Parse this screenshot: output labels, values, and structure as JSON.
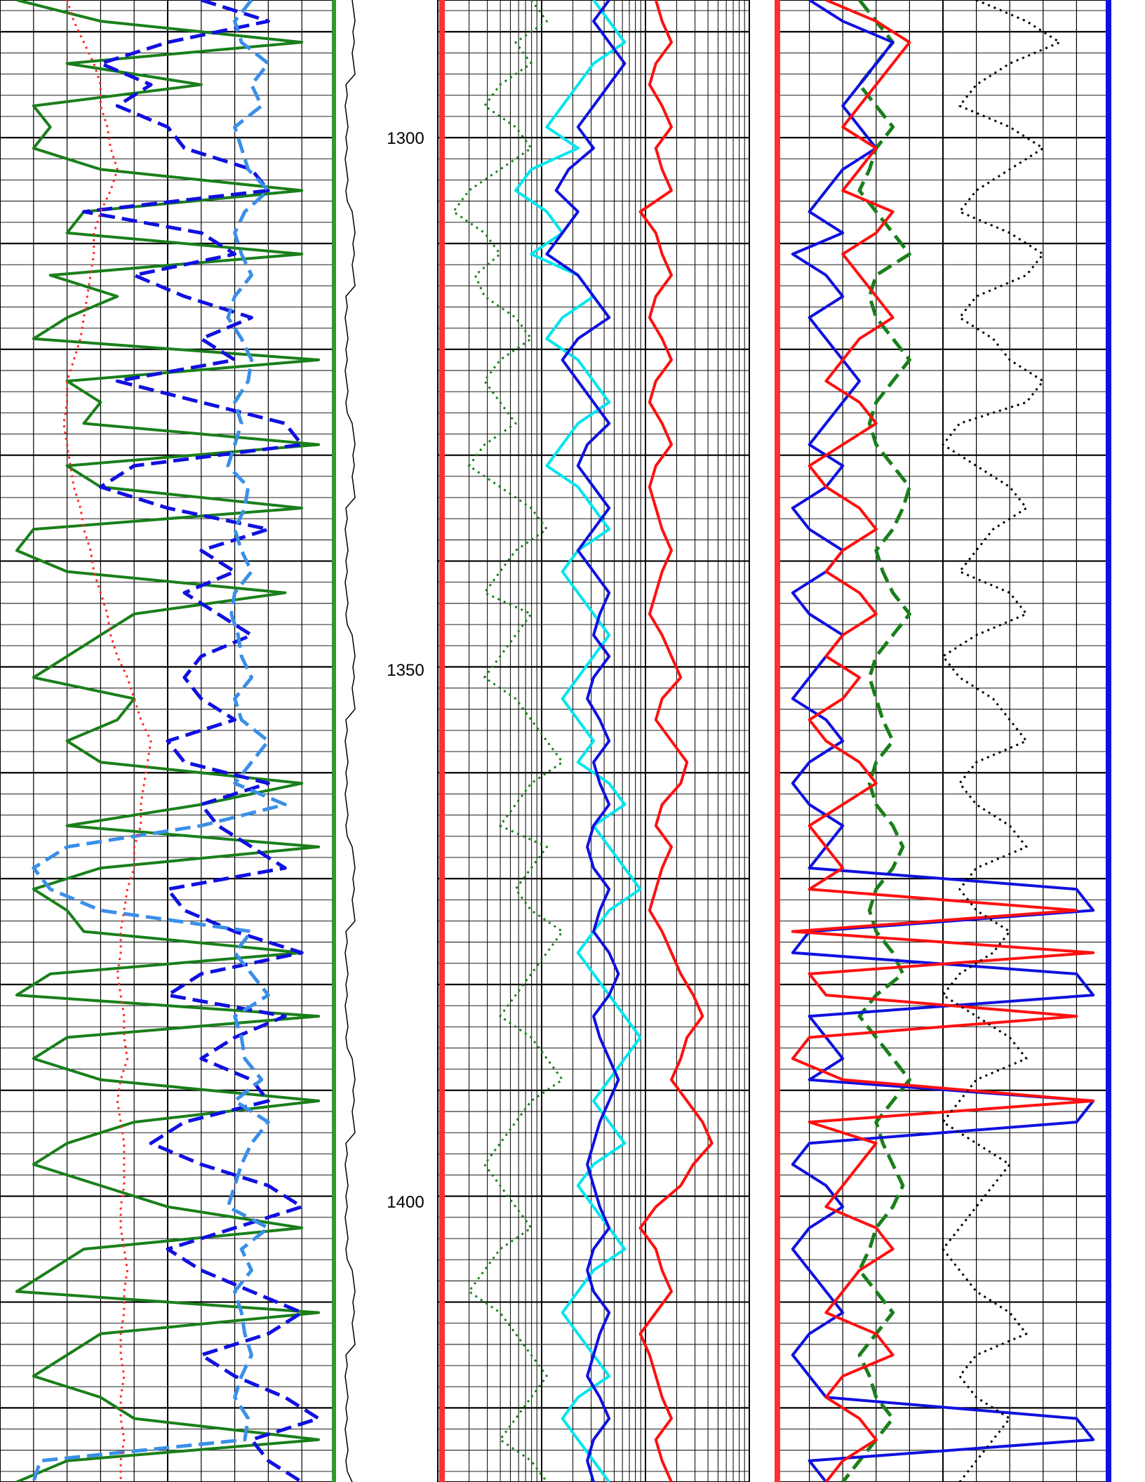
{
  "chart_data": {
    "type": "line",
    "subtype": "well-log",
    "depth_range": [
      1287,
      1427
    ],
    "depth_labels": [
      "1300",
      "1350",
      "1400"
    ],
    "depth_values": [
      1300,
      1350,
      1400
    ],
    "tracks": [
      {
        "id": "track-1",
        "scale": "linear",
        "grid": true,
        "series": [
          {
            "color": "#1a7f1a",
            "style": "solid",
            "x": [
              0.05,
              0.3,
              0.9,
              0.2,
              0.6,
              0.1,
              0.15,
              0.1,
              0.3,
              0.9,
              0.25,
              0.2,
              0.9,
              0.15,
              0.35,
              0.2,
              0.1,
              0.95,
              0.2,
              0.3,
              0.25,
              0.95,
              0.2,
              0.3,
              0.9,
              0.1,
              0.05,
              0.2,
              0.85,
              0.4,
              0.3,
              0.2,
              0.1,
              0.4,
              0.35,
              0.2,
              0.3,
              0.9,
              0.6,
              0.2,
              0.95,
              0.3,
              0.1,
              0.2,
              0.25,
              0.9,
              0.15,
              0.05,
              0.95,
              0.2,
              0.1,
              0.3,
              0.95,
              0.4,
              0.2,
              0.1,
              0.3,
              0.5,
              0.9,
              0.25,
              0.15,
              0.05,
              0.95,
              0.3,
              0.2,
              0.1,
              0.3,
              0.4,
              0.95,
              0.2,
              0.05
            ]
          },
          {
            "color": "#1010e0",
            "style": "dash",
            "x": [
              0.6,
              0.8,
              0.5,
              0.3,
              0.45,
              0.35,
              0.5,
              0.55,
              0.75,
              0.8,
              0.25,
              0.6,
              0.7,
              0.4,
              0.55,
              0.75,
              0.6,
              0.7,
              0.35,
              0.6,
              0.85,
              0.9,
              0.4,
              0.3,
              0.5,
              0.8,
              0.6,
              0.7,
              0.55,
              0.65,
              0.75,
              0.6,
              0.55,
              0.6,
              0.7,
              0.5,
              0.55,
              0.8,
              0.6,
              0.65,
              0.75,
              0.85,
              0.5,
              0.55,
              0.7,
              0.9,
              0.6,
              0.5,
              0.85,
              0.7,
              0.6,
              0.75,
              0.8,
              0.55,
              0.45,
              0.6,
              0.8,
              0.9,
              0.7,
              0.5,
              0.6,
              0.75,
              0.9,
              0.8,
              0.6,
              0.7,
              0.85,
              0.95,
              0.75,
              0.8,
              0.9
            ]
          },
          {
            "color": "#3a8fe8",
            "style": "dash",
            "x": [
              0.75,
              0.7,
              0.72,
              0.8,
              0.75,
              0.78,
              0.7,
              0.72,
              0.74,
              0.8,
              0.73,
              0.7,
              0.72,
              0.75,
              0.7,
              0.68,
              0.72,
              0.75,
              0.74,
              0.7,
              0.72,
              0.7,
              0.68,
              0.74,
              0.73,
              0.7,
              0.72,
              0.75,
              0.7,
              0.69,
              0.71,
              0.72,
              0.75,
              0.7,
              0.72,
              0.8,
              0.75,
              0.7,
              0.85,
              0.6,
              0.2,
              0.1,
              0.15,
              0.3,
              0.75,
              0.7,
              0.75,
              0.8,
              0.7,
              0.72,
              0.73,
              0.78,
              0.7,
              0.8,
              0.75,
              0.72,
              0.7,
              0.68,
              0.8,
              0.72,
              0.75,
              0.7,
              0.72,
              0.73,
              0.75,
              0.72,
              0.7,
              0.74,
              0.73,
              0.12,
              0.1
            ]
          },
          {
            "color": "#ff2a2a",
            "style": "dot",
            "x": [
              0.2,
              0.22,
              0.25,
              0.28,
              0.3,
              0.3,
              0.32,
              0.33,
              0.35,
              0.33,
              0.3,
              0.28,
              0.28,
              0.27,
              0.26,
              0.25,
              0.24,
              0.22,
              0.2,
              0.2,
              0.19,
              0.2,
              0.21,
              0.22,
              0.24,
              0.25,
              0.27,
              0.28,
              0.3,
              0.32,
              0.33,
              0.35,
              0.38,
              0.4,
              0.42,
              0.45,
              0.44,
              0.43,
              0.42,
              0.42,
              0.4,
              0.4,
              0.38,
              0.37,
              0.36,
              0.36,
              0.35,
              0.36,
              0.37,
              0.37,
              0.38,
              0.36,
              0.35,
              0.36,
              0.37,
              0.37,
              0.37,
              0.36,
              0.36,
              0.37,
              0.38,
              0.37,
              0.37,
              0.36,
              0.36,
              0.37,
              0.36,
              0.36,
              0.37,
              0.36,
              0.36
            ]
          }
        ]
      },
      {
        "id": "track-2",
        "scale": "log",
        "grid": true,
        "series": [
          {
            "color": "#1a7f1a",
            "style": "dot",
            "x": [
              0.3,
              0.35,
              0.25,
              0.3,
              0.2,
              0.15,
              0.25,
              0.3,
              0.2,
              0.1,
              0.05,
              0.15,
              0.2,
              0.12,
              0.15,
              0.25,
              0.3,
              0.2,
              0.15,
              0.2,
              0.25,
              0.15,
              0.1,
              0.2,
              0.3,
              0.35,
              0.25,
              0.2,
              0.15,
              0.3,
              0.25,
              0.2,
              0.15,
              0.25,
              0.3,
              0.35,
              0.4,
              0.3,
              0.25,
              0.2,
              0.35,
              0.3,
              0.25,
              0.3,
              0.4,
              0.35,
              0.3,
              0.25,
              0.2,
              0.3,
              0.35,
              0.4,
              0.3,
              0.25,
              0.2,
              0.15,
              0.2,
              0.25,
              0.3,
              0.2,
              0.15,
              0.1,
              0.2,
              0.25,
              0.3,
              0.35,
              0.3,
              0.25,
              0.2,
              0.3,
              0.35
            ]
          },
          {
            "color": "#00e5ee",
            "style": "solid",
            "x": [
              0.5,
              0.55,
              0.6,
              0.5,
              0.45,
              0.4,
              0.35,
              0.45,
              0.3,
              0.25,
              0.35,
              0.4,
              0.3,
              0.45,
              0.5,
              0.4,
              0.35,
              0.45,
              0.5,
              0.55,
              0.45,
              0.4,
              0.35,
              0.45,
              0.5,
              0.55,
              0.45,
              0.4,
              0.45,
              0.5,
              0.55,
              0.5,
              0.45,
              0.4,
              0.45,
              0.5,
              0.45,
              0.55,
              0.6,
              0.5,
              0.55,
              0.6,
              0.65,
              0.55,
              0.5,
              0.45,
              0.5,
              0.55,
              0.6,
              0.65,
              0.6,
              0.55,
              0.5,
              0.55,
              0.6,
              0.5,
              0.45,
              0.5,
              0.55,
              0.6,
              0.5,
              0.45,
              0.4,
              0.45,
              0.5,
              0.55,
              0.45,
              0.4,
              0.45,
              0.5,
              0.55
            ]
          },
          {
            "color": "#1010e0",
            "style": "solid",
            "x": [
              0.55,
              0.5,
              0.55,
              0.6,
              0.55,
              0.5,
              0.45,
              0.5,
              0.42,
              0.38,
              0.45,
              0.4,
              0.35,
              0.45,
              0.5,
              0.55,
              0.45,
              0.4,
              0.45,
              0.5,
              0.55,
              0.48,
              0.45,
              0.5,
              0.55,
              0.5,
              0.45,
              0.5,
              0.55,
              0.52,
              0.5,
              0.55,
              0.5,
              0.48,
              0.52,
              0.55,
              0.5,
              0.52,
              0.55,
              0.5,
              0.48,
              0.5,
              0.55,
              0.52,
              0.5,
              0.55,
              0.58,
              0.55,
              0.5,
              0.52,
              0.55,
              0.58,
              0.55,
              0.52,
              0.5,
              0.48,
              0.5,
              0.52,
              0.55,
              0.5,
              0.48,
              0.5,
              0.55,
              0.52,
              0.5,
              0.48,
              0.52,
              0.55,
              0.5,
              0.48,
              0.5
            ]
          },
          {
            "color": "#ff1010",
            "style": "solid",
            "x": [
              0.7,
              0.72,
              0.75,
              0.7,
              0.68,
              0.72,
              0.75,
              0.7,
              0.72,
              0.75,
              0.65,
              0.7,
              0.72,
              0.75,
              0.7,
              0.68,
              0.72,
              0.75,
              0.7,
              0.68,
              0.72,
              0.75,
              0.7,
              0.68,
              0.7,
              0.72,
              0.75,
              0.72,
              0.7,
              0.68,
              0.72,
              0.75,
              0.78,
              0.72,
              0.7,
              0.75,
              0.8,
              0.78,
              0.72,
              0.7,
              0.75,
              0.72,
              0.7,
              0.68,
              0.72,
              0.75,
              0.78,
              0.82,
              0.85,
              0.8,
              0.78,
              0.75,
              0.8,
              0.85,
              0.88,
              0.82,
              0.78,
              0.7,
              0.65,
              0.7,
              0.72,
              0.75,
              0.7,
              0.65,
              0.68,
              0.7,
              0.72,
              0.75,
              0.7,
              0.72,
              0.75
            ]
          }
        ]
      },
      {
        "id": "track-3",
        "scale": "linear",
        "grid": true,
        "series": [
          {
            "color": "#1a7f1a",
            "style": "dash",
            "x": [
              0.25,
              0.3,
              0.35,
              0.3,
              0.25,
              0.3,
              0.35,
              0.3,
              0.28,
              0.25,
              0.3,
              0.35,
              0.4,
              0.3,
              0.28,
              0.3,
              0.35,
              0.4,
              0.35,
              0.3,
              0.28,
              0.3,
              0.35,
              0.4,
              0.38,
              0.35,
              0.3,
              0.32,
              0.35,
              0.4,
              0.35,
              0.3,
              0.28,
              0.3,
              0.32,
              0.35,
              0.3,
              0.28,
              0.3,
              0.35,
              0.38,
              0.35,
              0.3,
              0.28,
              0.3,
              0.35,
              0.38,
              0.3,
              0.25,
              0.3,
              0.35,
              0.4,
              0.35,
              0.3,
              0.32,
              0.35,
              0.38,
              0.35,
              0.3,
              0.28,
              0.25,
              0.3,
              0.35,
              0.3,
              0.25,
              0.28,
              0.3,
              0.35,
              0.3,
              0.25,
              0.2
            ]
          },
          {
            "color": "#1010e0",
            "style": "solid",
            "x": [
              0.1,
              0.2,
              0.35,
              0.3,
              0.25,
              0.2,
              0.25,
              0.3,
              0.2,
              0.15,
              0.1,
              0.2,
              0.05,
              0.15,
              0.2,
              0.1,
              0.15,
              0.2,
              0.25,
              0.2,
              0.15,
              0.1,
              0.2,
              0.15,
              0.05,
              0.1,
              0.2,
              0.15,
              0.05,
              0.1,
              0.2,
              0.15,
              0.1,
              0.05,
              0.15,
              0.2,
              0.1,
              0.05,
              0.1,
              0.2,
              0.15,
              0.1,
              0.9,
              0.95,
              0.1,
              0.05,
              0.9,
              0.95,
              0.1,
              0.15,
              0.2,
              0.1,
              0.95,
              0.9,
              0.1,
              0.05,
              0.15,
              0.2,
              0.1,
              0.05,
              0.1,
              0.15,
              0.2,
              0.1,
              0.05,
              0.1,
              0.15,
              0.9,
              0.95,
              0.1,
              0.15
            ]
          },
          {
            "color": "#ff1010",
            "style": "solid",
            "x": [
              0.15,
              0.3,
              0.4,
              0.35,
              0.3,
              0.25,
              0.2,
              0.3,
              0.25,
              0.2,
              0.35,
              0.3,
              0.2,
              0.25,
              0.3,
              0.35,
              0.25,
              0.2,
              0.15,
              0.25,
              0.3,
              0.2,
              0.1,
              0.15,
              0.25,
              0.3,
              0.2,
              0.15,
              0.25,
              0.3,
              0.2,
              0.15,
              0.25,
              0.2,
              0.1,
              0.15,
              0.25,
              0.3,
              0.2,
              0.1,
              0.15,
              0.2,
              0.1,
              0.9,
              0.05,
              0.95,
              0.1,
              0.15,
              0.9,
              0.1,
              0.05,
              0.2,
              0.95,
              0.1,
              0.3,
              0.25,
              0.2,
              0.15,
              0.3,
              0.35,
              0.25,
              0.2,
              0.15,
              0.3,
              0.35,
              0.2,
              0.15,
              0.25,
              0.3,
              0.2,
              0.15
            ]
          },
          {
            "color": "#000000",
            "style": "dot",
            "x": [
              0.6,
              0.75,
              0.85,
              0.7,
              0.6,
              0.55,
              0.7,
              0.8,
              0.7,
              0.6,
              0.55,
              0.7,
              0.8,
              0.75,
              0.6,
              0.55,
              0.65,
              0.7,
              0.8,
              0.75,
              0.55,
              0.5,
              0.6,
              0.7,
              0.75,
              0.65,
              0.6,
              0.55,
              0.7,
              0.75,
              0.6,
              0.5,
              0.55,
              0.65,
              0.7,
              0.75,
              0.6,
              0.55,
              0.6,
              0.7,
              0.75,
              0.6,
              0.55,
              0.6,
              0.7,
              0.65,
              0.55,
              0.5,
              0.6,
              0.7,
              0.75,
              0.6,
              0.55,
              0.5,
              0.6,
              0.7,
              0.65,
              0.6,
              0.55,
              0.5,
              0.55,
              0.6,
              0.7,
              0.75,
              0.6,
              0.55,
              0.6,
              0.7,
              0.65,
              0.6,
              0.55
            ]
          }
        ]
      }
    ]
  }
}
